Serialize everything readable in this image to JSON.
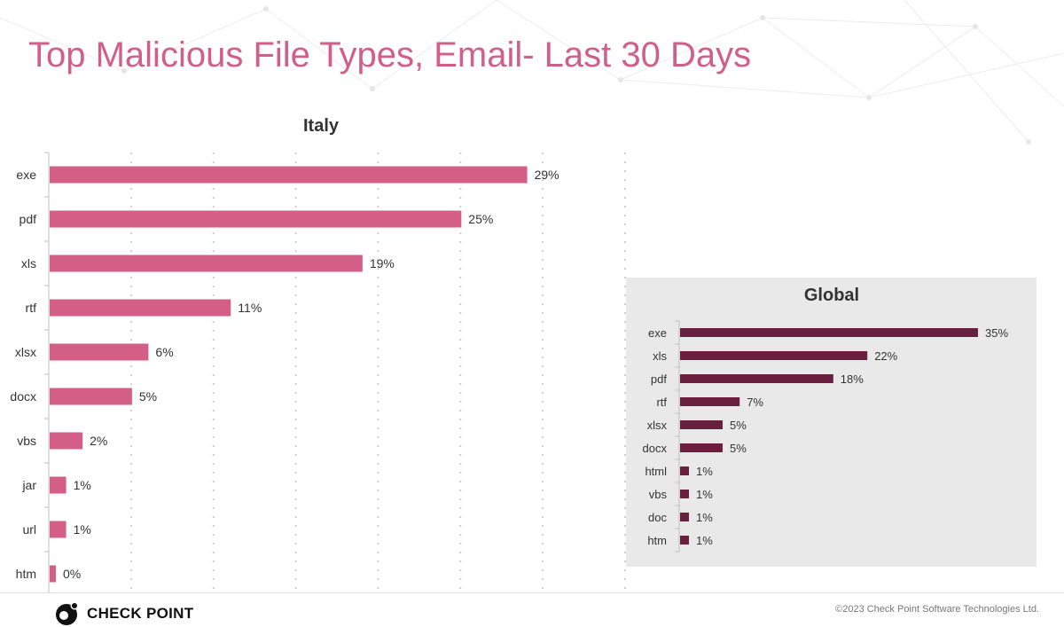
{
  "page_title": "Top Malicious File Types, Email- Last 30 Days",
  "colors": {
    "title": "#d05f8a",
    "italy_bar": "#d45f86",
    "global_bar": "#6b1f3f",
    "panel_bg": "#e9e9e9"
  },
  "chart_data": [
    {
      "type": "bar",
      "orientation": "horizontal",
      "title": "Italy",
      "categories": [
        "exe",
        "pdf",
        "xls",
        "rtf",
        "xlsx",
        "docx",
        "vbs",
        "jar",
        "url",
        "htm"
      ],
      "values": [
        29,
        25,
        19,
        11,
        6,
        5,
        2,
        1,
        1,
        0
      ],
      "data_labels": [
        "29%",
        "25%",
        "19%",
        "11%",
        "6%",
        "5%",
        "2%",
        "1%",
        "1%",
        "0%"
      ],
      "value_unit": "%",
      "xlim": [
        0,
        35
      ],
      "grid": "vertical dotted",
      "legend": "none"
    },
    {
      "type": "bar",
      "orientation": "horizontal",
      "title": "Global",
      "categories": [
        "exe",
        "xls",
        "pdf",
        "rtf",
        "xlsx",
        "docx",
        "html",
        "vbs",
        "doc",
        "htm"
      ],
      "values": [
        35,
        22,
        18,
        7,
        5,
        5,
        1,
        1,
        1,
        1
      ],
      "data_labels": [
        "35%",
        "22%",
        "18%",
        "7%",
        "5%",
        "5%",
        "1%",
        "1%",
        "1%",
        "1%"
      ],
      "value_unit": "%",
      "xlim": [
        0,
        35
      ],
      "grid": "none",
      "legend": "none"
    }
  ],
  "footer": {
    "logo_text": "CHECK POINT",
    "logo_icon": "check-point-logo-icon",
    "copyright": "©2023 Check Point Software Technologies Ltd."
  }
}
